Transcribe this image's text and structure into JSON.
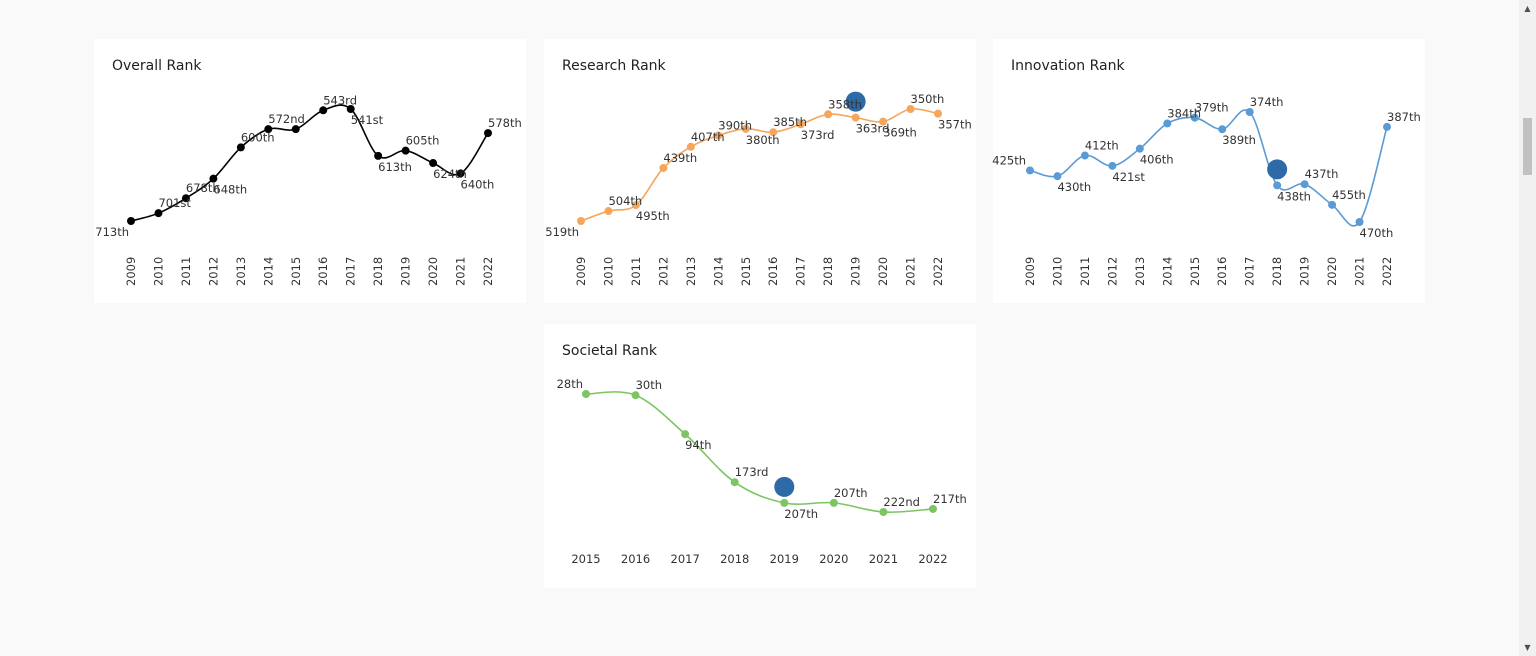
{
  "charts": {
    "overall": {
      "title": "Overall Rank",
      "color": "#000000",
      "x": [
        "2009",
        "2010",
        "2011",
        "2012",
        "2013",
        "2014",
        "2015",
        "2016",
        "2017",
        "2018",
        "2019",
        "2020",
        "2021",
        "2022"
      ],
      "values": [
        713,
        701,
        678,
        648,
        600,
        572,
        572,
        543,
        541,
        613,
        605,
        624,
        640,
        578
      ],
      "labels": [
        "713th",
        "701st",
        "678th",
        "648th",
        "600th",
        "572nd",
        "",
        "543rd",
        "541st",
        "613th",
        "605th",
        "624th",
        "640th",
        "578th"
      ],
      "highlight": null
    },
    "research": {
      "title": "Research Rank",
      "color": "#f5a65b",
      "x": [
        "2009",
        "2010",
        "2011",
        "2012",
        "2013",
        "2014",
        "2015",
        "2016",
        "2017",
        "2018",
        "2019",
        "2020",
        "2021",
        "2022"
      ],
      "values": [
        519,
        504,
        495,
        439,
        407,
        390,
        380,
        385,
        373,
        358,
        363,
        369,
        350,
        357
      ],
      "labels": [
        "519th",
        "504th",
        "495th",
        "439th",
        "407th",
        "390th",
        "380th",
        "385th",
        "373rd",
        "358th",
        "363rd",
        "369th",
        "350th",
        "357th"
      ],
      "highlight": "2019"
    },
    "innovation": {
      "title": "Innovation Rank",
      "color": "#5b9bd5",
      "x": [
        "2009",
        "2010",
        "2011",
        "2012",
        "2013",
        "2014",
        "2015",
        "2016",
        "2017",
        "2018",
        "2019",
        "2020",
        "2021",
        "2022"
      ],
      "values": [
        425,
        430,
        412,
        421,
        406,
        384,
        379,
        389,
        374,
        438,
        437,
        455,
        470,
        387
      ],
      "labels": [
        "425th",
        "430th",
        "412th",
        "421st",
        "406th",
        "384th",
        "379th",
        "389th",
        "374th",
        "438th",
        "437th",
        "455th",
        "470th",
        "387th"
      ],
      "highlight": "2018"
    },
    "societal": {
      "title": "Societal Rank",
      "color": "#7dc462",
      "x": [
        "2015",
        "2016",
        "2017",
        "2018",
        "2019",
        "2020",
        "2021",
        "2022"
      ],
      "values": [
        28,
        30,
        94,
        173,
        207,
        207,
        222,
        217
      ],
      "labels": [
        "28th",
        "30th",
        "94th",
        "173rd",
        "207th",
        "207th",
        "222nd",
        "217th"
      ],
      "highlight": "2019"
    }
  },
  "chart_data": [
    {
      "type": "line",
      "title": "Overall Rank",
      "x": [
        "2009",
        "2010",
        "2011",
        "2012",
        "2013",
        "2014",
        "2015",
        "2016",
        "2017",
        "2018",
        "2019",
        "2020",
        "2021",
        "2022"
      ],
      "y": [
        713,
        701,
        678,
        648,
        600,
        572,
        572,
        543,
        541,
        613,
        605,
        624,
        640,
        578
      ],
      "y_reversed": true,
      "xlabel": "",
      "ylabel": ""
    },
    {
      "type": "line",
      "title": "Research Rank",
      "x": [
        "2009",
        "2010",
        "2011",
        "2012",
        "2013",
        "2014",
        "2015",
        "2016",
        "2017",
        "2018",
        "2019",
        "2020",
        "2021",
        "2022"
      ],
      "y": [
        519,
        504,
        495,
        439,
        407,
        390,
        380,
        385,
        373,
        358,
        363,
        369,
        350,
        357
      ],
      "y_reversed": true,
      "xlabel": "",
      "ylabel": ""
    },
    {
      "type": "line",
      "title": "Innovation Rank",
      "x": [
        "2009",
        "2010",
        "2011",
        "2012",
        "2013",
        "2014",
        "2015",
        "2016",
        "2017",
        "2018",
        "2019",
        "2020",
        "2021",
        "2022"
      ],
      "y": [
        425,
        430,
        412,
        421,
        406,
        384,
        379,
        389,
        374,
        438,
        437,
        455,
        470,
        387
      ],
      "y_reversed": true,
      "xlabel": "",
      "ylabel": ""
    },
    {
      "type": "line",
      "title": "Societal Rank",
      "x": [
        "2015",
        "2016",
        "2017",
        "2018",
        "2019",
        "2020",
        "2021",
        "2022"
      ],
      "y": [
        28,
        30,
        94,
        173,
        207,
        207,
        222,
        217
      ],
      "y_reversed": true,
      "xlabel": "",
      "ylabel": ""
    }
  ],
  "highlight_color": "#2e6aa8",
  "scrollbar": {
    "up_icon": "▲",
    "down_icon": "▼"
  }
}
